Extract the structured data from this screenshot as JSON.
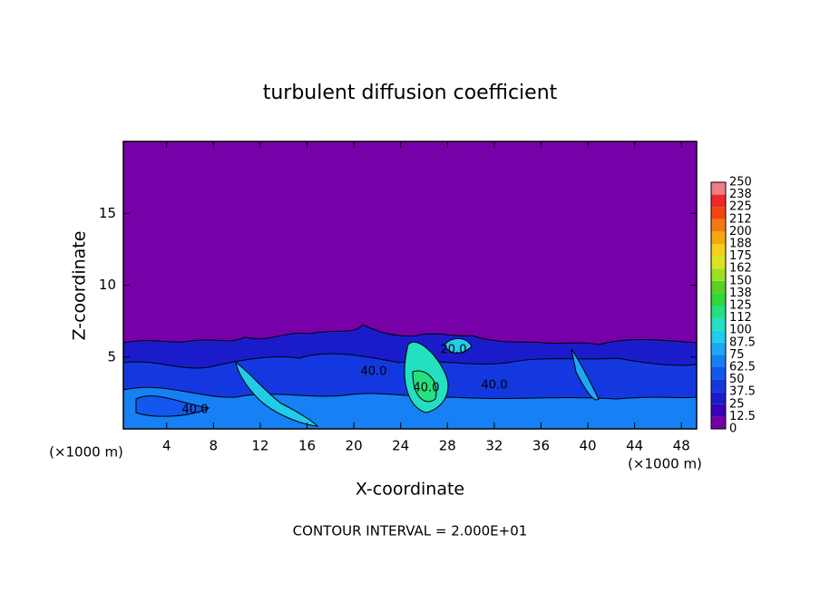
{
  "chart_data": {
    "type": "contour",
    "title": "turbulent diffusion coefficient",
    "x_label": "X-coordinate",
    "y_label": "Z-coordinate",
    "x_unit_labels": [
      "(×1000 m)",
      "(×1000 m)"
    ],
    "footer": "CONTOUR INTERVAL = 2.000E+01",
    "contour_labels": [
      "40.0",
      "40.0",
      "40.0",
      "40.0",
      "20.0"
    ],
    "xlim": [
      0.3,
      49.3
    ],
    "xticks": [
      4,
      8,
      12,
      16,
      20,
      24,
      28,
      32,
      36,
      40,
      44,
      48
    ],
    "ylim": [
      0,
      20
    ],
    "yticks": [
      5,
      10,
      15
    ],
    "background_color": "#7800a8",
    "colorbar": {
      "ticks": [
        0,
        12.5,
        25,
        37.5,
        50,
        62.5,
        75,
        87.5,
        100,
        112,
        125,
        138,
        150,
        162,
        175,
        188,
        200,
        212,
        225,
        238,
        250
      ],
      "colors": [
        "#7400a8",
        "#3a00b8",
        "#1a1ccc",
        "#1438e0",
        "#1258ee",
        "#1680f4",
        "#1ca8f4",
        "#20cce8",
        "#22e0c0",
        "#24e080",
        "#30d838",
        "#5cd020",
        "#9ce020",
        "#d8e420",
        "#f4d018",
        "#f4a810",
        "#f47810",
        "#f44410",
        "#f02828",
        "#f07c88"
      ]
    }
  }
}
